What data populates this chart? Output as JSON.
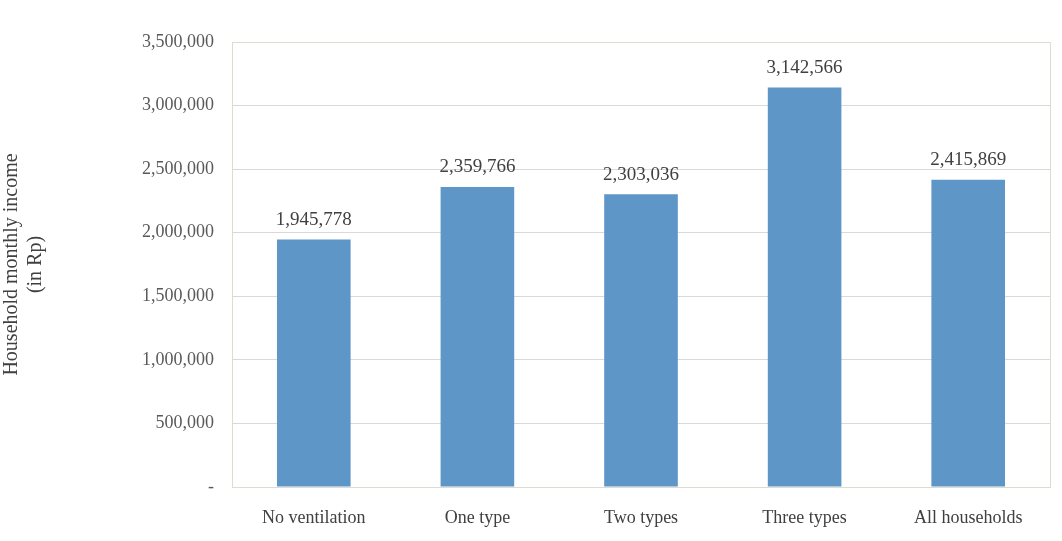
{
  "chart_data": {
    "type": "bar",
    "ylabel": "Household monthly income (in Rp)",
    "categories": [
      "No ventilation",
      "One type",
      "Two types",
      "Three types",
      "All households"
    ],
    "values": [
      1945778,
      2359766,
      2303036,
      3142566,
      2415869
    ],
    "value_labels": [
      "1,945,778",
      "2,359,766",
      "2,303,036",
      "3,142,566",
      "2,415,869"
    ],
    "color": "#5f96c8",
    "ylim": [
      0,
      3500000
    ],
    "yticks": [
      {
        "value": 0,
        "label": "-"
      },
      {
        "value": 500000,
        "label": "500,000"
      },
      {
        "value": 1000000,
        "label": "1,000,000"
      },
      {
        "value": 1500000,
        "label": "1,500,000"
      },
      {
        "value": 2000000,
        "label": "2,000,000"
      },
      {
        "value": 2500000,
        "label": "2,500,000"
      },
      {
        "value": 3000000,
        "label": "3,000,000"
      },
      {
        "value": 3500000,
        "label": "3,500,000"
      }
    ],
    "grid": "y",
    "legend": false
  }
}
